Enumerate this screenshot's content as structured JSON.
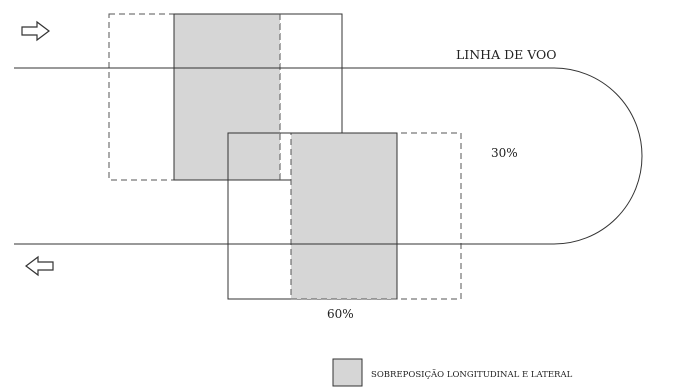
{
  "diagram": {
    "flight_line_label": "LINHA DE VOO",
    "lateral_overlap_label": "30%",
    "longitudinal_overlap_label": "60%",
    "legend_label": "SOBREPOSIÇÃO LONGITUDINAL E LATERAL",
    "direction_top": "right",
    "direction_bottom": "left",
    "colors": {
      "overlap_fill": "#d6d6d6",
      "line": "#333333",
      "dashed": "#555555",
      "background": "#ffffff"
    }
  }
}
